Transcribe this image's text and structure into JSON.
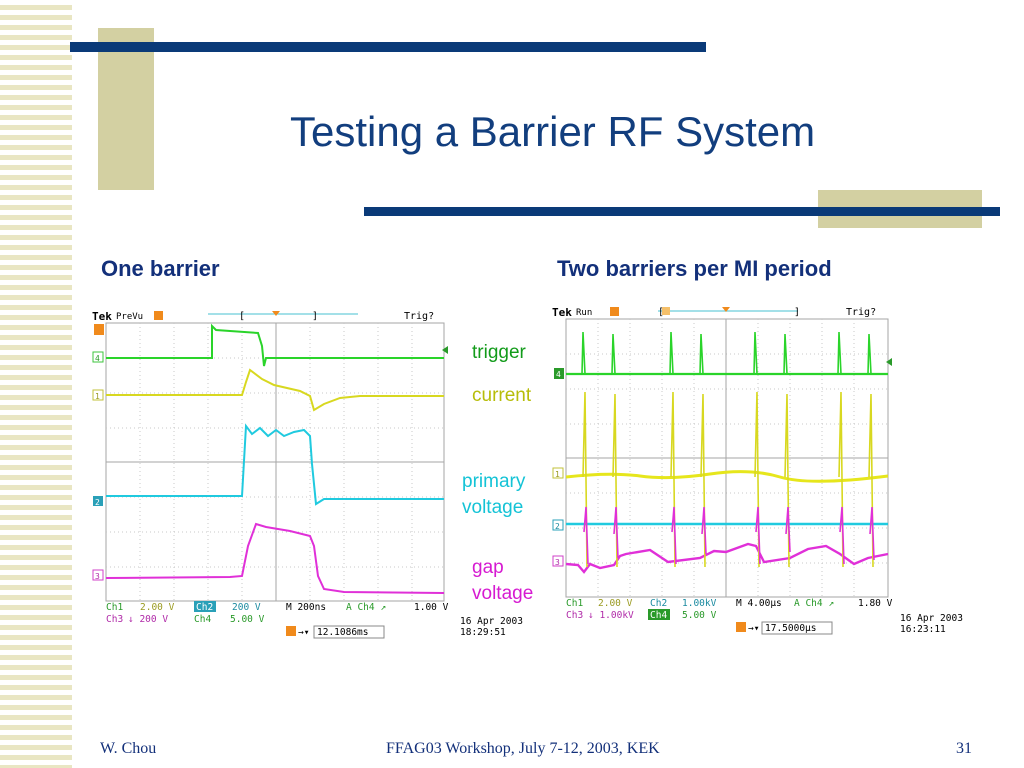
{
  "slide": {
    "title": "Testing a Barrier RF System",
    "left_heading": "One barrier",
    "right_heading": "Two barriers per MI period"
  },
  "legend": {
    "trigger": "trigger",
    "current": "current",
    "primary_voltage": [
      "primary",
      "voltage"
    ],
    "gap_voltage": [
      "gap",
      "voltage"
    ],
    "colors": {
      "trigger": "#129b1a",
      "current": "#b7bd09",
      "primary_voltage": "#14c3d6",
      "gap_voltage": "#d61ad1"
    }
  },
  "scope_left": {
    "brand": "Tek",
    "mode": "PreVu",
    "trig_status": "Trig?",
    "readout": {
      "ch1_label": "Ch1",
      "ch1_value": "2.00 V",
      "ch2_label": "Ch2",
      "ch2_value": "200 V",
      "timebase": "M 200ns",
      "trigger_ch": "A Ch4 ↗",
      "trigger_level": "1.00 V",
      "ch3_label": "Ch3",
      "ch3_value": "↓ 200 V",
      "ch4_label": "Ch4",
      "ch4_value": "5.00 V",
      "position": "12.1086ms",
      "date": "16 Apr 2003",
      "time": "18:29:51"
    }
  },
  "scope_right": {
    "brand": "Tek",
    "mode": "Run",
    "trig_status": "Trig?",
    "readout": {
      "ch1_label": "Ch1",
      "ch1_value": "2.00 V",
      "ch2_label": "Ch2",
      "ch2_value": "1.00kV",
      "timebase": "M 4.00µs",
      "trigger_ch": "A Ch4 ↗",
      "trigger_level": "1.80 V",
      "ch3_label": "Ch3",
      "ch3_value": "↓ 1.00kV",
      "ch4_label": "Ch4",
      "ch4_value": "5.00 V",
      "position": "17.5000µs",
      "date": "16 Apr 2003",
      "time": "16:23:11"
    }
  },
  "footer": {
    "author": "W. Chou",
    "event": "FFAG03 Workshop, July 7-12, 2003, KEK",
    "page": "31"
  }
}
